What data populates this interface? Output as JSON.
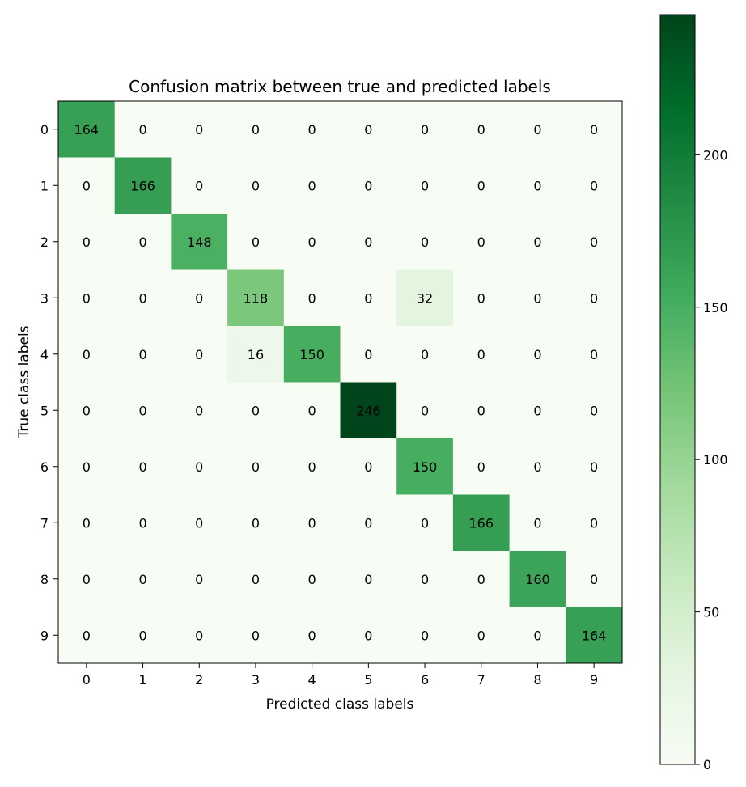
{
  "chart_data": {
    "type": "heatmap",
    "title": "Confusion matrix between true and predicted labels",
    "xlabel": "Predicted class labels",
    "ylabel": "True class labels",
    "x_categories": [
      "0",
      "1",
      "2",
      "3",
      "4",
      "5",
      "6",
      "7",
      "8",
      "9"
    ],
    "y_categories": [
      "0",
      "1",
      "2",
      "3",
      "4",
      "5",
      "6",
      "7",
      "8",
      "9"
    ],
    "matrix": [
      [
        164,
        0,
        0,
        0,
        0,
        0,
        0,
        0,
        0,
        0
      ],
      [
        0,
        166,
        0,
        0,
        0,
        0,
        0,
        0,
        0,
        0
      ],
      [
        0,
        0,
        148,
        0,
        0,
        0,
        0,
        0,
        0,
        0
      ],
      [
        0,
        0,
        0,
        118,
        0,
        0,
        32,
        0,
        0,
        0
      ],
      [
        0,
        0,
        0,
        16,
        150,
        0,
        0,
        0,
        0,
        0
      ],
      [
        0,
        0,
        0,
        0,
        0,
        246,
        0,
        0,
        0,
        0
      ],
      [
        0,
        0,
        0,
        0,
        0,
        0,
        150,
        0,
        0,
        0
      ],
      [
        0,
        0,
        0,
        0,
        0,
        0,
        0,
        166,
        0,
        0
      ],
      [
        0,
        0,
        0,
        0,
        0,
        0,
        0,
        0,
        160,
        0
      ],
      [
        0,
        0,
        0,
        0,
        0,
        0,
        0,
        0,
        0,
        164
      ]
    ],
    "colormap": "Greens",
    "color_range": [
      0,
      246
    ],
    "colorbar_ticks": [
      "0",
      "50",
      "100",
      "150",
      "200"
    ],
    "colorbar_tick_values": [
      0,
      50,
      100,
      150,
      200
    ],
    "grid": false
  }
}
